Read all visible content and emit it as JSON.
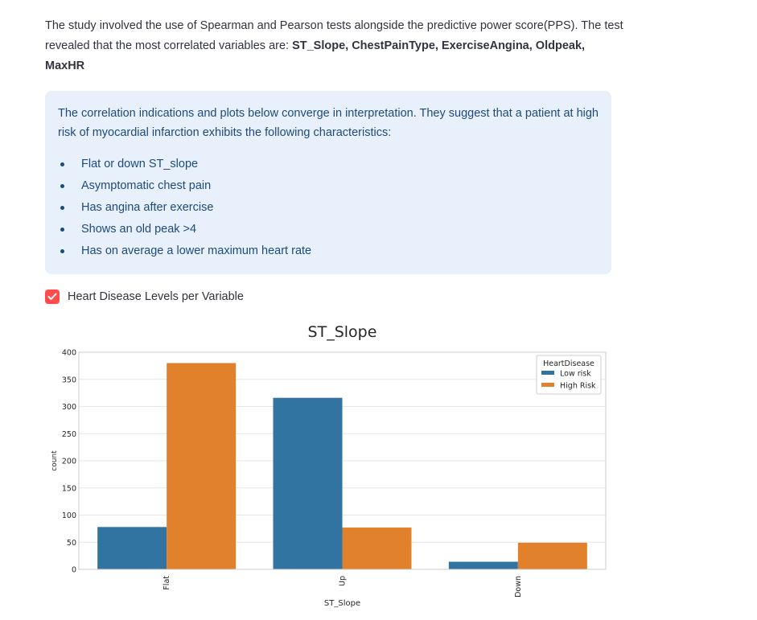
{
  "intro": {
    "text_before": "The study involved the use of Spearman and Pearson tests alongside the predictive power score(PPS). The test revealed that the most correlated variables are: ",
    "bold_variables": "ST_Slope, ChestPainType, ExerciseAngina, Oldpeak, MaxHR"
  },
  "info_box": {
    "text": "The correlation indications and plots below converge in interpretation. They suggest that a patient at high risk of myocardial infarction exhibits the following characteristics:",
    "bullets": [
      "Flat or down ST_slope",
      "Asymptomatic chest pain",
      "Has angina after exercise",
      "Shows an old peak >4",
      "Has on average a lower maximum heart rate"
    ]
  },
  "checkbox": {
    "label": "Heart Disease Levels per Variable",
    "checked": true,
    "color": "#ff4b4b"
  },
  "chart_data": {
    "type": "bar",
    "title": "ST_Slope",
    "xlabel": "ST_Slope",
    "ylabel": "count",
    "categories": [
      "Flat",
      "Up",
      "Down"
    ],
    "series": [
      {
        "name": "Low risk",
        "values": [
          78,
          316,
          14
        ],
        "color": "#3274a1"
      },
      {
        "name": "High Risk",
        "values": [
          380,
          77,
          49
        ],
        "color": "#e1812c"
      }
    ],
    "ylim": [
      0,
      400
    ],
    "yticks": [
      0,
      50,
      100,
      150,
      200,
      250,
      300,
      350,
      400
    ],
    "legend_title": "HeartDisease",
    "legend_position": "top-right",
    "grid": true
  }
}
